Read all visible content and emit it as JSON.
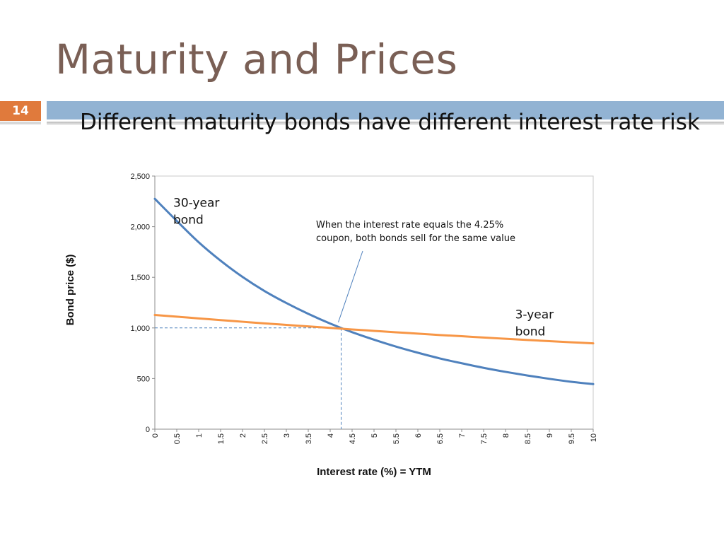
{
  "slide": {
    "title": "Maturity and Prices",
    "number": "14",
    "subtitle": "Different maturity bonds have different interest rate risk",
    "colors": {
      "title": "#7a5f55",
      "badge": "#e07a3c",
      "band": "#92b3d3"
    }
  },
  "chart_data": {
    "type": "line",
    "xlabel": "Interest rate (%) = YTM",
    "ylabel": "Bond price ($)",
    "xlim": [
      0,
      10
    ],
    "ylim": [
      0,
      2500
    ],
    "x_ticks": [
      "0",
      "0.5",
      "1",
      "1.5",
      "2",
      "2.5",
      "3",
      "3.5",
      "4",
      "4.5",
      "5",
      "5.5",
      "6",
      "6.5",
      "7",
      "7.5",
      "8",
      "8.5",
      "9",
      "9.5",
      "10"
    ],
    "y_ticks": [
      "0",
      "500",
      "1,000",
      "1,500",
      "2,000",
      "2,500"
    ],
    "x": [
      0,
      0.5,
      1,
      1.5,
      2,
      2.5,
      3,
      3.5,
      4,
      4.5,
      5,
      5.5,
      6,
      6.5,
      7,
      7.5,
      8,
      8.5,
      9,
      9.5,
      10
    ],
    "series": [
      {
        "name": "30-year bond",
        "color": "#4f81bd",
        "values": [
          2275,
          2057,
          1846,
          1664,
          1504,
          1365,
          1246,
          1139,
          1043,
          958,
          884,
          816,
          755,
          699,
          651,
          606,
          566,
          530,
          497,
          468,
          445
        ]
      },
      {
        "name": "3-year bond",
        "color": "#f79646",
        "values": [
          1128,
          1111,
          1094,
          1077,
          1061,
          1045,
          1030,
          1015,
          1000,
          985,
          971,
          957,
          944,
          930,
          918,
          905,
          893,
          881,
          869,
          858,
          848
        ]
      }
    ],
    "labels": [
      {
        "series": 0,
        "text": "30-year bond",
        "lines": [
          "30-year",
          "bond"
        ],
        "x": 0.5,
        "y": 2030
      },
      {
        "series": 1,
        "text": "3-year bond",
        "lines": [
          "3-year",
          "bond"
        ],
        "x": 8.3,
        "y": 925
      }
    ],
    "annotation": {
      "lines": [
        "When the interest rate equals the 4.25%",
        "coupon, both bonds sell for the same value"
      ],
      "point": {
        "x": 4.25,
        "y": 1000
      }
    },
    "grid": false,
    "legend": "none"
  }
}
